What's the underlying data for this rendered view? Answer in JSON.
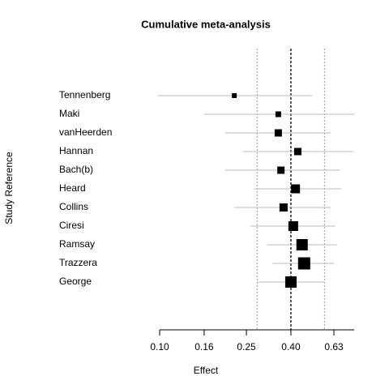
{
  "chart_data": {
    "type": "forest",
    "title": "Cumulative meta-analysis",
    "xlabel": "Effect",
    "ylabel": "Study Reference",
    "log_x": true,
    "xlim": [
      0.1,
      0.78
    ],
    "xticks": [
      {
        "value": 0.1,
        "label": "0.10"
      },
      {
        "value": 0.16,
        "label": "0.16"
      },
      {
        "value": 0.25,
        "label": "0.25"
      },
      {
        "value": 0.4,
        "label": "0.40"
      },
      {
        "value": 0.63,
        "label": "0.63"
      }
    ],
    "categories": [
      "Tennenberg",
      "Maki",
      "vanHeerden",
      "Hannan",
      "Bach(b)",
      "Heard",
      "Collins",
      "Ciresi",
      "Ramsay",
      "Trazzera",
      "George"
    ],
    "estimates": [
      0.22,
      0.35,
      0.35,
      0.43,
      0.36,
      0.42,
      0.37,
      0.41,
      0.45,
      0.46,
      0.4
    ],
    "lower": [
      0.098,
      0.16,
      0.2,
      0.24,
      0.2,
      0.27,
      0.22,
      0.26,
      0.31,
      0.33,
      0.28
    ],
    "upper": [
      0.5,
      0.78,
      0.61,
      0.77,
      0.67,
      0.68,
      0.61,
      0.64,
      0.65,
      0.63,
      0.57
    ],
    "weights": [
      6,
      7,
      9,
      9,
      9,
      11,
      10,
      12,
      14,
      15,
      14
    ],
    "summary": {
      "estimate": 0.4,
      "lower": 0.28,
      "upper": 0.57
    },
    "color": "#000000",
    "ci_color": "#bbbbbb"
  }
}
